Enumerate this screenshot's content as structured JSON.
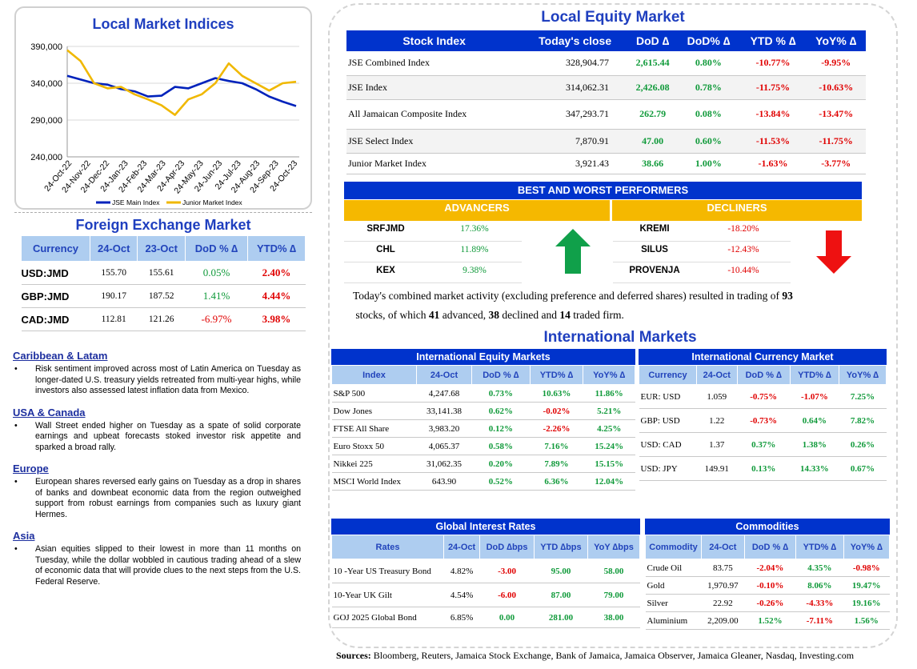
{
  "chart": {
    "title": "Local Market Indices"
  },
  "chart_data": {
    "type": "line",
    "title": "Local Market Indices",
    "y_ticks": [
      "390,000",
      "340,000",
      "290,000",
      "240,000"
    ],
    "ylim": [
      240000,
      390000
    ],
    "x_ticks": [
      "24-Oct-22",
      "24-Nov-22",
      "24-Dec-22",
      "24-Jan-23",
      "24-Feb-23",
      "24-Mar-23",
      "24-Apr-23",
      "24-May-23",
      "24-Jun-23",
      "24-Jul-23",
      "24-Aug-23",
      "24-Sep-23",
      "24-Oct-23"
    ],
    "series": [
      {
        "name": "JSE Main Index",
        "color": "#0022bb",
        "values": [
          350000,
          345000,
          340000,
          338000,
          332000,
          329000,
          322000,
          323000,
          335000,
          333000,
          340000,
          347000,
          343000,
          340000,
          332000,
          322000,
          315000,
          309000
        ]
      },
      {
        "name": "Junior Market Index",
        "color": "#f0b800",
        "values": [
          385000,
          370000,
          340000,
          333000,
          335000,
          325000,
          318000,
          310000,
          297000,
          318000,
          325000,
          340000,
          367000,
          350000,
          340000,
          330000,
          340000,
          342000
        ]
      }
    ]
  },
  "fx": {
    "title": "Foreign Exchange Market",
    "headers": [
      "Currency",
      "24-Oct",
      "23-Oct",
      "DoD % ∆",
      "YTD% ∆"
    ],
    "rows": [
      {
        "c": "USD:JMD",
        "a": "155.70",
        "b": "155.61",
        "d": "0.05%",
        "y": "2.40%"
      },
      {
        "c": "GBP:JMD",
        "a": "190.17",
        "b": "187.52",
        "d": "1.41%",
        "y": "4.44%"
      },
      {
        "c": "CAD:JMD",
        "a": "112.81",
        "b": "121.26",
        "d": "-6.97%",
        "y": "3.98%"
      }
    ]
  },
  "news": [
    {
      "h": "Caribbean & Latam",
      "p": "Risk sentiment improved across most of Latin America on Tuesday as longer-dated U.S. treasury yields retreated from multi-year highs, while investors also assessed latest inflation data from Mexico."
    },
    {
      "h": "USA & Canada",
      "p": "Wall Street ended higher on Tuesday as a spate of solid corporate earnings and upbeat forecasts stoked investor risk appetite and sparked a broad rally."
    },
    {
      "h": "Europe",
      "p": "European shares reversed early gains on Tuesday as a drop in shares of banks and downbeat economic data from the region outweighed support from robust earnings from companies such as luxury giant Hermes."
    },
    {
      "h": "Asia",
      "p": "Asian equities slipped to their lowest in more than 11 months on Tuesday, while the dollar wobbled in cautious trading ahead of a slew of economic data that will provide clues to the next steps from the U.S. Federal Reserve."
    }
  ],
  "equity": {
    "title": "Local Equity Market",
    "headers": [
      "Stock Index",
      "Today's close",
      "DoD  ∆",
      "DoD% ∆",
      "YTD % ∆",
      "YoY% ∆"
    ],
    "rows": [
      {
        "n": "JSE Combined Index",
        "c": "328,904.77",
        "d": "2,615.44",
        "dp": "0.80%",
        "y": "-10.77%",
        "yy": "-9.95%"
      },
      {
        "n": "JSE Index",
        "c": "314,062.31",
        "d": "2,426.08",
        "dp": "0.78%",
        "y": "-11.75%",
        "yy": "-10.63%"
      },
      {
        "n": "All Jamaican Composite Index",
        "c": "347,293.71",
        "d": "262.79",
        "dp": "0.08%",
        "y": "-13.84%",
        "yy": "-13.47%"
      },
      {
        "n": "JSE Select Index",
        "c": "7,870.91",
        "d": "47.00",
        "dp": "0.60%",
        "y": "-11.53%",
        "yy": "-11.75%"
      },
      {
        "n": "Junior Market Index",
        "c": "3,921.43",
        "d": "38.66",
        "dp": "1.00%",
        "y": "-1.63%",
        "yy": "-3.77%"
      }
    ]
  },
  "performers": {
    "title": "BEST AND WORST PERFORMERS",
    "adv_label": "ADVANCERS",
    "dec_label": "DECLINERS",
    "advancers": [
      {
        "s": "SRFJMD",
        "v": "17.36%"
      },
      {
        "s": "CHL",
        "v": "11.89%"
      },
      {
        "s": "KEX",
        "v": "9.38%"
      }
    ],
    "decliners": [
      {
        "s": "KREMI",
        "v": "-18.20%"
      },
      {
        "s": "SILUS",
        "v": "-12.43%"
      },
      {
        "s": "PROVENJA",
        "v": "-10.44%"
      }
    ]
  },
  "summary": {
    "t1": "Today's combined market activity (excluding preference and deferred shares) resulted in trading of ",
    "n1": "93",
    "t2": "stocks, of which ",
    "n2": "41",
    "t3": " advanced, ",
    "n3": "38",
    "t4": " declined and ",
    "n4": "14",
    "t5": " traded firm."
  },
  "intl_title": "International Markets",
  "ieq": {
    "title": "International Equity Markets",
    "headers": [
      "Index",
      "24-Oct",
      "DoD % ∆",
      "YTD% ∆",
      "YoY% ∆"
    ],
    "rows": [
      {
        "n": "S&P 500",
        "v": "4,247.68",
        "d": "0.73%",
        "y": "10.63%",
        "yy": "11.86%"
      },
      {
        "n": "Dow Jones",
        "v": "33,141.38",
        "d": "0.62%",
        "y": "-0.02%",
        "yy": "5.21%"
      },
      {
        "n": "FTSE All Share",
        "v": "3,983.20",
        "d": "0.12%",
        "y": "-2.26%",
        "yy": "4.25%"
      },
      {
        "n": "Euro Stoxx 50",
        "v": "4,065.37",
        "d": "0.58%",
        "y": "7.16%",
        "yy": "15.24%"
      },
      {
        "n": "Nikkei 225",
        "v": "31,062.35",
        "d": "0.20%",
        "y": "7.89%",
        "yy": "15.15%"
      },
      {
        "n": "MSCI World Index",
        "v": "643.90",
        "d": "0.52%",
        "y": "6.36%",
        "yy": "12.04%"
      }
    ]
  },
  "icur": {
    "title": "International Currency Market",
    "headers": [
      "Currency",
      "24-Oct",
      "DoD % ∆",
      "YTD% ∆",
      "YoY% ∆"
    ],
    "rows": [
      {
        "n": "EUR: USD",
        "v": "1.059",
        "d": "-0.75%",
        "y": "-1.07%",
        "yy": "7.25%"
      },
      {
        "n": "GBP: USD",
        "v": "1.22",
        "d": "-0.73%",
        "y": "0.64%",
        "yy": "7.82%"
      },
      {
        "n": "USD: CAD",
        "v": "1.37",
        "d": "0.37%",
        "y": "1.38%",
        "yy": "0.26%"
      },
      {
        "n": "USD: JPY",
        "v": "149.91",
        "d": "0.13%",
        "y": "14.33%",
        "yy": "0.67%"
      }
    ]
  },
  "rates": {
    "title": "Global Interest Rates",
    "headers": [
      "Rates",
      "24-Oct",
      "DoD ∆bps",
      "YTD ∆bps",
      "YoY ∆bps"
    ],
    "rows": [
      {
        "n": "10 -Year US Treasury Bond",
        "v": "4.82%",
        "d": "-3.00",
        "y": "95.00",
        "yy": "58.00"
      },
      {
        "n": "10-Year UK Gilt",
        "v": "4.54%",
        "d": "-6.00",
        "y": "87.00",
        "yy": "79.00"
      },
      {
        "n": "GOJ 2025 Global Bond",
        "v": "6.85%",
        "d": "0.00",
        "y": "281.00",
        "yy": "38.00"
      }
    ]
  },
  "comm": {
    "title": "Commodities",
    "headers": [
      "Commodity",
      "24-Oct",
      "DoD % ∆",
      "YTD% ∆",
      "YoY% ∆"
    ],
    "rows": [
      {
        "n": "Crude Oil",
        "v": "83.75",
        "d": "-2.04%",
        "y": "4.35%",
        "yy": "-0.98%"
      },
      {
        "n": "Gold",
        "v": "1,970.97",
        "d": "-0.10%",
        "y": "8.06%",
        "yy": "19.47%"
      },
      {
        "n": "Silver",
        "v": "22.92",
        "d": "-0.26%",
        "y": "-4.33%",
        "yy": "19.16%"
      },
      {
        "n": "Aluminium",
        "v": "2,209.00",
        "d": "1.52%",
        "y": "-7.11%",
        "yy": "1.56%"
      }
    ]
  },
  "sources": {
    "label": "Sources:",
    "text": " Bloomberg, Reuters, Jamaica Stock Exchange, Bank of Jamaica, Jamaica Observer, Jamaica Gleaner, Nasdaq, Investing.com"
  }
}
